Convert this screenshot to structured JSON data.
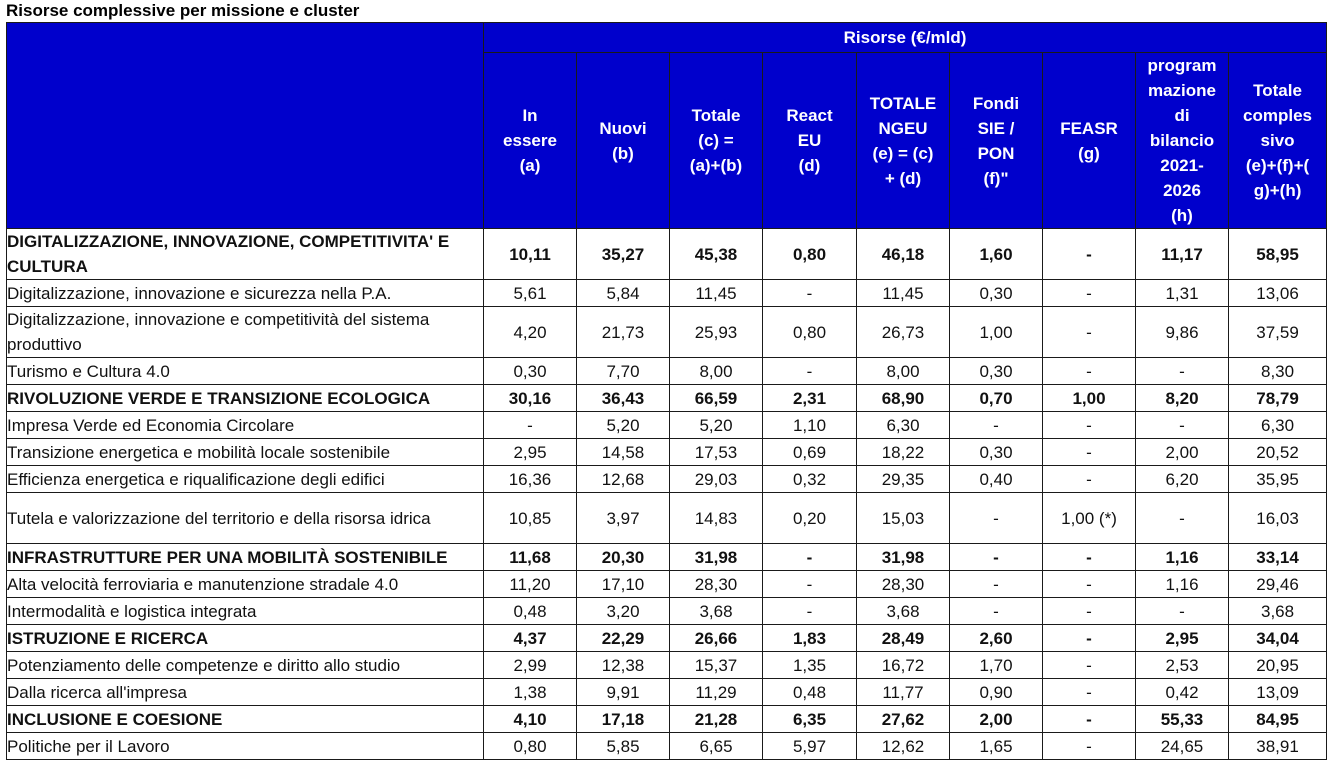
{
  "title": "Risorse complessive per missione e cluster",
  "header": {
    "group": "Risorse (€/mld)",
    "columns": [
      "In essere (a)",
      "Nuovi (b)",
      "Totale (c) = (a)+(b)",
      "React EU (d)",
      "TOTALE NGEU (e) = (c) + (d)",
      "Fondi SIE / PON (f)\"",
      "FEASR (g)",
      "program mazione di bilancio 2021-2026 (h)",
      "Totale comples sivo (e)+(f)+(g)+(h)"
    ]
  },
  "rows": [
    {
      "label": "DIGITALIZZAZIONE, INNOVAZIONE, COMPETITIVITA' E CULTURA",
      "bold": true,
      "values": [
        "10,11",
        "35,27",
        "45,38",
        "0,80",
        "46,18",
        "1,60",
        "-",
        "11,17",
        "58,95"
      ]
    },
    {
      "label": "Digitalizzazione, innovazione e sicurezza nella P.A.",
      "bold": false,
      "values": [
        "5,61",
        "5,84",
        "11,45",
        "-",
        "11,45",
        "0,30",
        "-",
        "1,31",
        "13,06"
      ]
    },
    {
      "label": "Digitalizzazione, innovazione e competitività del sistema produttivo",
      "bold": false,
      "values": [
        "4,20",
        "21,73",
        "25,93",
        "0,80",
        "26,73",
        "1,00",
        "-",
        "9,86",
        "37,59"
      ]
    },
    {
      "label": "Turismo e Cultura 4.0",
      "bold": false,
      "values": [
        "0,30",
        "7,70",
        "8,00",
        "-",
        "8,00",
        "0,30",
        "-",
        "-",
        "8,30"
      ]
    },
    {
      "label": "RIVOLUZIONE VERDE E TRANSIZIONE ECOLOGICA",
      "bold": true,
      "values": [
        "30,16",
        "36,43",
        "66,59",
        "2,31",
        "68,90",
        "0,70",
        "1,00",
        "8,20",
        "78,79"
      ]
    },
    {
      "label": "Impresa Verde ed Economia Circolare",
      "bold": false,
      "values": [
        "-",
        "5,20",
        "5,20",
        "1,10",
        "6,30",
        "-",
        "-",
        "-",
        "6,30"
      ]
    },
    {
      "label": "Transizione energetica e mobilità locale sostenibile",
      "bold": false,
      "values": [
        "2,95",
        "14,58",
        "17,53",
        "0,69",
        "18,22",
        "0,30",
        "-",
        "2,00",
        "20,52"
      ]
    },
    {
      "label": "Efficienza energetica e riqualificazione degli edifici",
      "bold": false,
      "values": [
        "16,36",
        "12,68",
        "29,03",
        "0,32",
        "29,35",
        "0,40",
        "-",
        "6,20",
        "35,95"
      ]
    },
    {
      "label": "Tutela e valorizzazione del territorio e della risorsa idrica",
      "bold": false,
      "values": [
        "10,85",
        "3,97",
        "14,83",
        "0,20",
        "15,03",
        "-",
        "1,00 (*)",
        "-",
        "16,03"
      ]
    },
    {
      "label": "INFRASTRUTTURE PER UNA MOBILITÀ SOSTENIBILE",
      "bold": true,
      "values": [
        "11,68",
        "20,30",
        "31,98",
        "-",
        "31,98",
        "-",
        "-",
        "1,16",
        "33,14"
      ]
    },
    {
      "label": "Alta velocità ferroviaria e manutenzione stradale 4.0",
      "bold": false,
      "values": [
        "11,20",
        "17,10",
        "28,30",
        "-",
        "28,30",
        "-",
        "-",
        "1,16",
        "29,46"
      ]
    },
    {
      "label": "Intermodalità e logistica integrata",
      "bold": false,
      "values": [
        "0,48",
        "3,20",
        "3,68",
        "-",
        "3,68",
        "-",
        "-",
        "-",
        "3,68"
      ]
    },
    {
      "label": "ISTRUZIONE E RICERCA",
      "bold": true,
      "values": [
        "4,37",
        "22,29",
        "26,66",
        "1,83",
        "28,49",
        "2,60",
        "-",
        "2,95",
        "34,04"
      ]
    },
    {
      "label": "Potenziamento delle competenze e diritto allo studio",
      "bold": false,
      "values": [
        "2,99",
        "12,38",
        "15,37",
        "1,35",
        "16,72",
        "1,70",
        "-",
        "2,53",
        "20,95"
      ]
    },
    {
      "label": "Dalla ricerca all'impresa",
      "bold": false,
      "values": [
        "1,38",
        "9,91",
        "11,29",
        "0,48",
        "11,77",
        "0,90",
        "-",
        "0,42",
        "13,09"
      ]
    },
    {
      "label": "INCLUSIONE E COESIONE",
      "bold": true,
      "values": [
        "4,10",
        "17,18",
        "21,28",
        "6,35",
        "27,62",
        "2,00",
        "-",
        "55,33",
        "84,95"
      ]
    },
    {
      "label": "Politiche per il Lavoro",
      "bold": false,
      "values": [
        "0,80",
        "5,85",
        "6,65",
        "5,97",
        "12,62",
        "1,65",
        "-",
        "24,65",
        "38,91"
      ]
    }
  ]
}
